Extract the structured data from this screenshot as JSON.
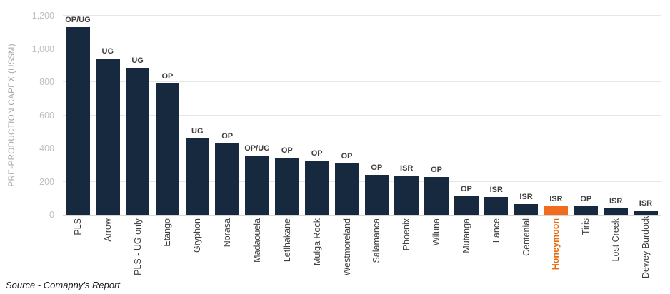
{
  "chart_data": {
    "type": "bar",
    "title": "",
    "xlabel": "",
    "ylabel": "PRE-PRODUCTION CAPEX (US$M)",
    "ylim": [
      0,
      1200
    ],
    "yticks": [
      "0",
      "200",
      "400",
      "600",
      "800",
      "1,000",
      "1,200"
    ],
    "grid": true,
    "legend_position": "none",
    "categories": [
      "PLS",
      "Arrow",
      "PLS - UG only",
      "Etango",
      "Gryphon",
      "Norasa",
      "Madaouela",
      "Letlhakane",
      "Mulga Rock",
      "Westmoreland",
      "Salamanca",
      "Phoenix",
      "Wiluna",
      "Mutanga",
      "Lance",
      "Centenial",
      "Honeymoon",
      "Tiris",
      "Lost Creek",
      "Dewey Burdock"
    ],
    "values": [
      1130,
      940,
      885,
      790,
      460,
      430,
      355,
      345,
      325,
      310,
      240,
      238,
      230,
      112,
      108,
      65,
      50,
      52,
      37,
      25
    ],
    "bar_labels": [
      "OP/UG",
      "UG",
      "UG",
      "OP",
      "UG",
      "OP",
      "OP/UG",
      "OP",
      "OP",
      "OP",
      "OP",
      "ISR",
      "OP",
      "OP",
      "ISR",
      "ISR",
      "ISR",
      "OP",
      "ISR",
      "ISR"
    ],
    "highlight_category": "Honeymoon",
    "colors": {
      "bar": "#17293F",
      "highlight_bar": "#F26C1F",
      "highlight_label": "#E8680A",
      "gridline": "#E6E6E6",
      "axis_line": "#D6D6D6",
      "tick_label": "#BFBFBF",
      "axis_title": "#A6A6A6",
      "annotation": "#3F3F3F",
      "category_label": "#3F3F3F"
    }
  },
  "source_note": "Source - Comapny's Report"
}
